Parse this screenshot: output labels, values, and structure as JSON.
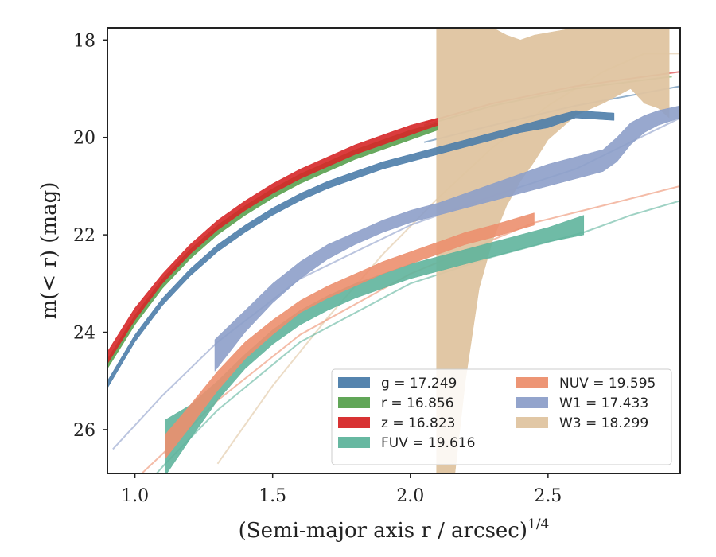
{
  "chart_data": {
    "type": "area",
    "title": "",
    "xlabel": "(Semi-major axis r / arcsec)",
    "xlabel_exponent": "1/4",
    "ylabel": "m(< r) (mag)",
    "xlim": [
      0.9,
      2.98
    ],
    "ylim": [
      26.9,
      17.75
    ],
    "y_inverted": true,
    "grid": false,
    "legend_position": "lower-right",
    "x_ticks": [
      "1.0",
      "1.5",
      "2.0",
      "2.5"
    ],
    "y_ticks": [
      "18",
      "20",
      "22",
      "24",
      "26"
    ],
    "series": [
      {
        "label": "g = 17.249",
        "key": "g",
        "color": "#4c7daa",
        "band_x": [
          0.9,
          1.0,
          1.1,
          1.2,
          1.3,
          1.4,
          1.5,
          1.6,
          1.7,
          1.8,
          1.9,
          2.0,
          2.1,
          2.2,
          2.3,
          2.4,
          2.5,
          2.6,
          2.74
        ],
        "band_lo": [
          25.15,
          24.2,
          23.45,
          22.85,
          22.35,
          21.95,
          21.6,
          21.3,
          21.05,
          20.85,
          20.65,
          20.5,
          20.35,
          20.2,
          20.05,
          19.9,
          19.8,
          19.6,
          19.65
        ],
        "band_hi": [
          25.0,
          24.05,
          23.3,
          22.7,
          22.2,
          21.8,
          21.45,
          21.15,
          20.9,
          20.7,
          20.5,
          20.35,
          20.2,
          20.05,
          19.9,
          19.75,
          19.6,
          19.45,
          19.5
        ],
        "model_x": [
          2.05,
          2.3,
          2.6,
          2.98
        ],
        "model_y": [
          20.1,
          19.75,
          19.35,
          18.95
        ]
      },
      {
        "label": "r = 16.856",
        "key": "r",
        "color": "#59a14f",
        "band_x": [
          0.9,
          1.0,
          1.1,
          1.2,
          1.3,
          1.4,
          1.5,
          1.6,
          1.7,
          1.8,
          1.9,
          2.0,
          2.1
        ],
        "band_lo": [
          24.75,
          23.85,
          23.1,
          22.5,
          22.0,
          21.6,
          21.25,
          20.95,
          20.7,
          20.45,
          20.25,
          20.05,
          19.85
        ],
        "band_hi": [
          24.55,
          23.65,
          22.9,
          22.3,
          21.8,
          21.4,
          21.05,
          20.75,
          20.5,
          20.25,
          20.05,
          19.85,
          19.7
        ],
        "model_x": [
          2.05,
          2.3,
          2.6,
          2.95
        ],
        "model_y": [
          19.75,
          19.35,
          19.0,
          18.75
        ]
      },
      {
        "label": "z = 16.823",
        "key": "z",
        "color": "#d62728",
        "band_x": [
          0.9,
          1.0,
          1.1,
          1.2,
          1.3,
          1.4,
          1.5,
          1.6,
          1.7,
          1.8,
          1.9,
          2.0,
          2.1
        ],
        "band_lo": [
          24.65,
          23.75,
          23.0,
          22.4,
          21.9,
          21.5,
          21.15,
          20.85,
          20.6,
          20.35,
          20.15,
          19.95,
          19.75
        ],
        "band_hi": [
          24.4,
          23.5,
          22.8,
          22.2,
          21.7,
          21.3,
          20.95,
          20.65,
          20.4,
          20.15,
          19.95,
          19.75,
          19.6
        ],
        "model_x": [
          2.05,
          2.3,
          2.6,
          2.98
        ],
        "model_y": [
          19.7,
          19.3,
          18.95,
          18.65
        ]
      },
      {
        "label": "FUV = 19.616",
        "key": "FUV",
        "color": "#5fb49c",
        "band_x": [
          1.11,
          1.2,
          1.3,
          1.4,
          1.5,
          1.6,
          1.7,
          1.8,
          1.9,
          2.0,
          2.1,
          2.2,
          2.3,
          2.4,
          2.5,
          2.63
        ],
        "band_lo": [
          26.95,
          26.2,
          25.4,
          24.75,
          24.25,
          23.85,
          23.55,
          23.3,
          23.1,
          22.9,
          22.75,
          22.6,
          22.45,
          22.3,
          22.15,
          22.0
        ],
        "band_hi": [
          25.8,
          25.5,
          25.0,
          24.45,
          23.95,
          23.55,
          23.25,
          23.0,
          22.8,
          22.6,
          22.45,
          22.3,
          22.15,
          22.0,
          21.85,
          21.6
        ],
        "model_x": [
          0.9,
          1.0,
          1.11,
          1.3,
          1.6,
          2.0,
          2.3,
          2.63,
          2.8,
          2.98
        ],
        "model_y": [
          28.0,
          27.4,
          26.7,
          25.6,
          24.2,
          23.0,
          22.45,
          21.95,
          21.6,
          21.3
        ]
      },
      {
        "label": "NUV = 19.595",
        "key": "NUV",
        "color": "#ec8f6e",
        "band_x": [
          1.11,
          1.2,
          1.3,
          1.4,
          1.5,
          1.6,
          1.7,
          1.8,
          1.9,
          2.0,
          2.1,
          2.2,
          2.3,
          2.45
        ],
        "band_lo": [
          26.6,
          25.95,
          25.2,
          24.55,
          24.05,
          23.6,
          23.3,
          23.05,
          22.8,
          22.6,
          22.4,
          22.2,
          22.05,
          21.8
        ],
        "band_hi": [
          26.1,
          25.5,
          24.8,
          24.2,
          23.75,
          23.35,
          23.05,
          22.8,
          22.55,
          22.35,
          22.15,
          21.95,
          21.8,
          21.55
        ],
        "model_x": [
          0.95,
          1.1,
          1.3,
          1.6,
          2.0,
          2.3,
          2.45,
          2.7,
          2.98
        ],
        "model_y": [
          27.3,
          26.5,
          25.4,
          24.05,
          22.8,
          22.1,
          21.75,
          21.4,
          21.0
        ]
      },
      {
        "label": "W1 = 17.433",
        "key": "W1",
        "color": "#8d9fc9",
        "band_x": [
          1.29,
          1.4,
          1.5,
          1.6,
          1.7,
          1.8,
          1.9,
          2.0,
          2.1,
          2.2,
          2.3,
          2.4,
          2.5,
          2.6,
          2.7,
          2.75,
          2.8,
          2.85,
          2.9,
          2.98
        ],
        "band_lo": [
          24.8,
          24.0,
          23.4,
          22.9,
          22.5,
          22.2,
          21.95,
          21.75,
          21.6,
          21.45,
          21.3,
          21.15,
          21.0,
          20.85,
          20.7,
          20.5,
          20.15,
          19.9,
          19.75,
          19.6
        ],
        "band_hi": [
          24.15,
          23.55,
          23.0,
          22.55,
          22.2,
          21.95,
          21.7,
          21.5,
          21.35,
          21.15,
          20.95,
          20.75,
          20.55,
          20.4,
          20.25,
          20.0,
          19.7,
          19.55,
          19.45,
          19.35
        ],
        "model_x": [
          0.92,
          1.1,
          1.3,
          1.6,
          2.0,
          2.3,
          2.6,
          2.98
        ],
        "model_y": [
          26.4,
          25.3,
          24.2,
          22.9,
          21.8,
          21.2,
          20.65,
          19.6
        ]
      },
      {
        "label": "W3 = 18.299",
        "key": "W3",
        "color": "#dfc4a0",
        "band_x": [
          2.095,
          2.15,
          2.2,
          2.25,
          2.3,
          2.35,
          2.4,
          2.45,
          2.5,
          2.55,
          2.6,
          2.7,
          2.8,
          2.85,
          2.9,
          2.94
        ],
        "band_lo": [
          27.5,
          27.5,
          25.0,
          23.1,
          22.1,
          21.4,
          20.9,
          20.5,
          20.05,
          19.8,
          19.55,
          19.3,
          19.0,
          19.3,
          19.4,
          19.6
        ],
        "band_hi": [
          17.75,
          17.75,
          17.75,
          17.75,
          17.75,
          17.9,
          18.0,
          17.9,
          17.85,
          17.8,
          17.75,
          17.75,
          17.75,
          17.75,
          17.75,
          17.75
        ],
        "model_x": [
          1.3,
          1.5,
          1.7,
          1.9,
          2.1,
          2.3,
          2.5,
          2.7,
          2.85,
          2.98
        ],
        "model_y": [
          26.7,
          25.1,
          23.7,
          22.4,
          21.25,
          20.2,
          19.35,
          18.65,
          18.28,
          18.28
        ]
      }
    ]
  }
}
